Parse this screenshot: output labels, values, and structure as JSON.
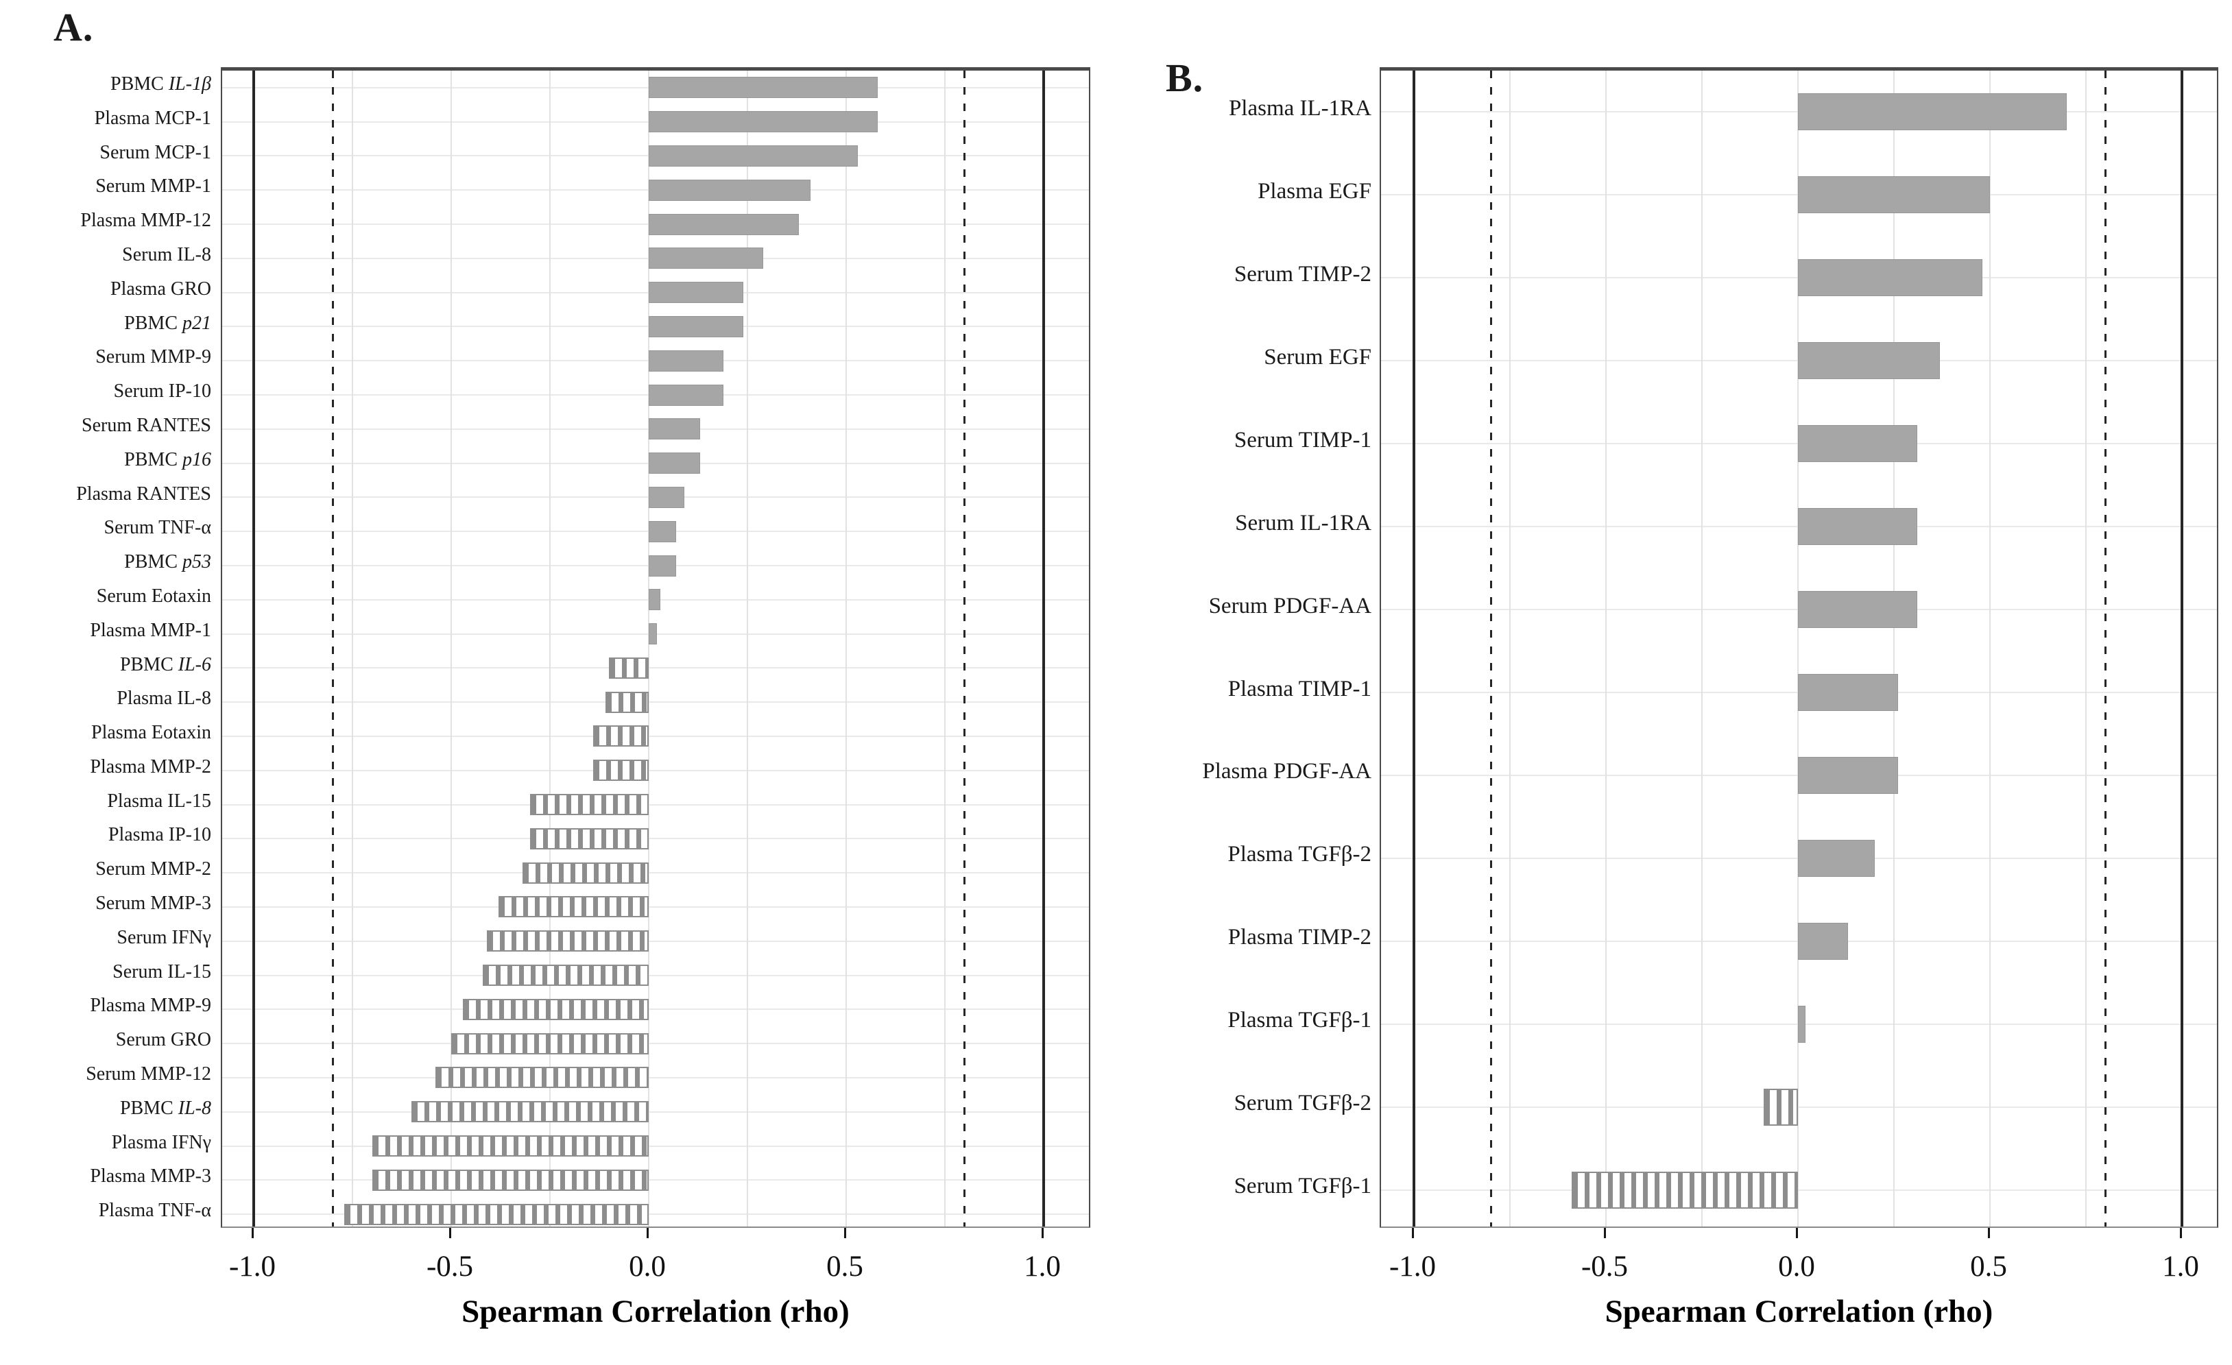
{
  "colors": {
    "solid_bar": "#a6a6a6",
    "striped_bar_stripe": "#8d8d8d",
    "frame": "#4a4a4a",
    "reference_line": "#262626",
    "gridline": "#e2e2e2",
    "text": "#1a1a1a"
  },
  "chart_data": [
    {
      "type": "bar",
      "panel_label": "A.",
      "orientation": "horizontal",
      "xlabel": "Spearman Correlation (rho)",
      "xlim": [
        -1.09,
        1.12
      ],
      "x_ticks": [
        -1.0,
        -0.5,
        0.0,
        0.5,
        1.0
      ],
      "x_tick_labels": [
        "-1.0",
        "-0.5",
        "0.0",
        "0.5",
        "1.0"
      ],
      "gridlines_x": [
        -0.75,
        -0.5,
        -0.25,
        0.0,
        0.25,
        0.5,
        0.75
      ],
      "reference_lines_solid": [
        -1.0,
        1.0
      ],
      "reference_lines_dashed": [
        -0.8,
        0.8
      ],
      "positive_bar_style": "solid-gray",
      "negative_bar_style": "striped",
      "categories": [
        {
          "prefix": "PBMC ",
          "em": "IL-1β"
        },
        {
          "prefix": "Plasma MCP-1",
          "em": ""
        },
        {
          "prefix": "Serum MCP-1",
          "em": ""
        },
        {
          "prefix": "Serum MMP-1",
          "em": ""
        },
        {
          "prefix": "Plasma MMP-12",
          "em": ""
        },
        {
          "prefix": "Serum IL-8",
          "em": ""
        },
        {
          "prefix": "Plasma GRO",
          "em": ""
        },
        {
          "prefix": "PBMC ",
          "em": "p21"
        },
        {
          "prefix": "Serum MMP-9",
          "em": ""
        },
        {
          "prefix": "Serum IP-10",
          "em": ""
        },
        {
          "prefix": "Serum RANTES",
          "em": ""
        },
        {
          "prefix": "PBMC ",
          "em": "p16"
        },
        {
          "prefix": "Plasma RANTES",
          "em": ""
        },
        {
          "prefix": "Serum TNF-α",
          "em": ""
        },
        {
          "prefix": "PBMC ",
          "em": "p53"
        },
        {
          "prefix": "Serum Eotaxin",
          "em": ""
        },
        {
          "prefix": "Plasma MMP-1",
          "em": ""
        },
        {
          "prefix": "PBMC ",
          "em": "IL-6"
        },
        {
          "prefix": "Plasma IL-8",
          "em": ""
        },
        {
          "prefix": "Plasma Eotaxin",
          "em": ""
        },
        {
          "prefix": "Plasma MMP-2",
          "em": ""
        },
        {
          "prefix": "Plasma IL-15",
          "em": ""
        },
        {
          "prefix": "Plasma IP-10",
          "em": ""
        },
        {
          "prefix": "Serum MMP-2",
          "em": ""
        },
        {
          "prefix": "Serum MMP-3",
          "em": ""
        },
        {
          "prefix": "Serum IFNγ",
          "em": ""
        },
        {
          "prefix": "Serum IL-15",
          "em": ""
        },
        {
          "prefix": "Plasma MMP-9",
          "em": ""
        },
        {
          "prefix": "Serum GRO",
          "em": ""
        },
        {
          "prefix": "Serum MMP-12",
          "em": ""
        },
        {
          "prefix": "PBMC ",
          "em": "IL-8"
        },
        {
          "prefix": "Plasma IFNγ",
          "em": ""
        },
        {
          "prefix": "Plasma MMP-3",
          "em": ""
        },
        {
          "prefix": "Plasma TNF-α",
          "em": ""
        }
      ],
      "values": [
        0.58,
        0.58,
        0.53,
        0.41,
        0.38,
        0.29,
        0.24,
        0.24,
        0.19,
        0.19,
        0.13,
        0.13,
        0.09,
        0.07,
        0.07,
        0.03,
        0.02,
        -0.1,
        -0.11,
        -0.14,
        -0.14,
        -0.3,
        -0.3,
        -0.32,
        -0.38,
        -0.41,
        -0.42,
        -0.47,
        -0.5,
        -0.54,
        -0.6,
        -0.7,
        -0.7,
        -0.77
      ]
    },
    {
      "type": "bar",
      "panel_label": "B.",
      "orientation": "horizontal",
      "xlabel": "Spearman Correlation (rho)",
      "xlim": [
        -1.09,
        1.1
      ],
      "x_ticks": [
        -1.0,
        -0.5,
        0.0,
        0.5,
        1.0
      ],
      "x_tick_labels": [
        "-1.0",
        "-0.5",
        "0.0",
        "0.5",
        "1.0"
      ],
      "gridlines_x": [
        -0.75,
        -0.5,
        -0.25,
        0.0,
        0.25,
        0.5,
        0.75
      ],
      "reference_lines_solid": [
        -1.0,
        1.0
      ],
      "reference_lines_dashed": [
        -0.8,
        0.8
      ],
      "positive_bar_style": "solid-gray",
      "negative_bar_style": "striped",
      "categories": [
        {
          "prefix": "Plasma IL-1RA",
          "em": ""
        },
        {
          "prefix": "Plasma EGF",
          "em": ""
        },
        {
          "prefix": "Serum TIMP-2",
          "em": ""
        },
        {
          "prefix": "Serum EGF",
          "em": ""
        },
        {
          "prefix": "Serum TIMP-1",
          "em": ""
        },
        {
          "prefix": "Serum IL-1RA",
          "em": ""
        },
        {
          "prefix": "Serum PDGF-AA",
          "em": ""
        },
        {
          "prefix": "Plasma TIMP-1",
          "em": ""
        },
        {
          "prefix": "Plasma PDGF-AA",
          "em": ""
        },
        {
          "prefix": "Plasma TGFβ-2",
          "em": ""
        },
        {
          "prefix": "Plasma TIMP-2",
          "em": ""
        },
        {
          "prefix": "Plasma TGFβ-1",
          "em": ""
        },
        {
          "prefix": "Serum TGFβ-2",
          "em": ""
        },
        {
          "prefix": "Serum TGFβ-1",
          "em": ""
        }
      ],
      "values": [
        0.7,
        0.5,
        0.48,
        0.37,
        0.31,
        0.31,
        0.31,
        0.26,
        0.26,
        0.2,
        0.13,
        0.02,
        -0.09,
        -0.59
      ]
    }
  ]
}
